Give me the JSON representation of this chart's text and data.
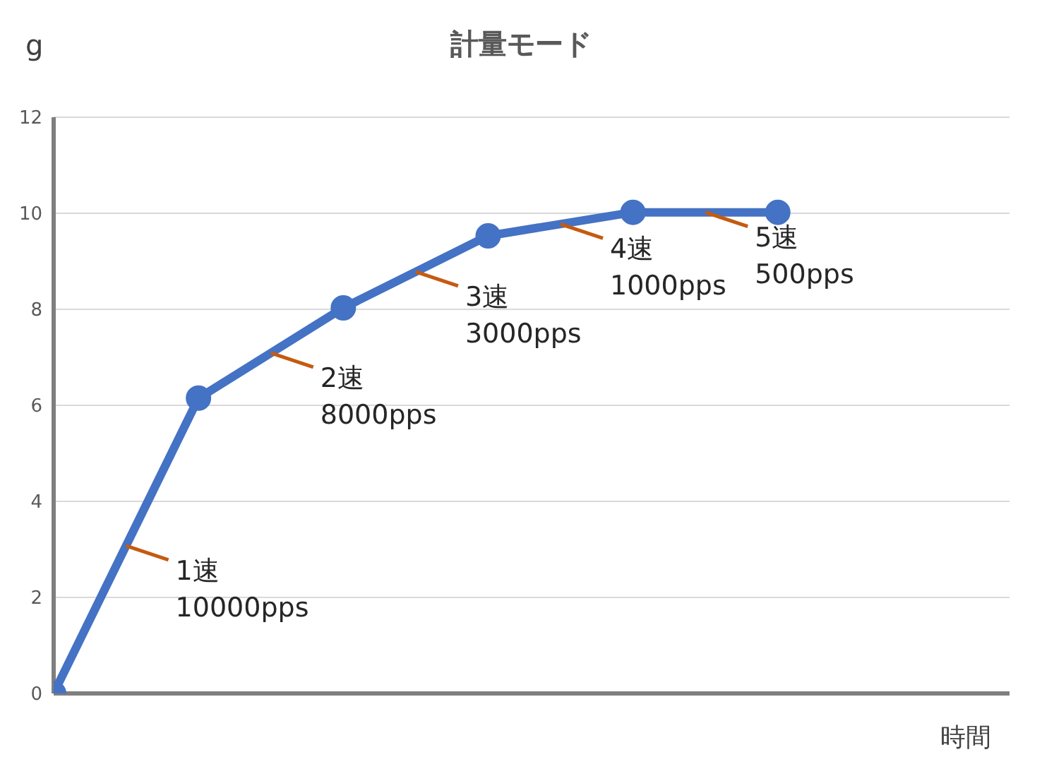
{
  "chart_data": {
    "type": "line",
    "title": "計量モード",
    "xlabel": "時間",
    "ylabel": "g",
    "categories": [
      null,
      null,
      null,
      null,
      null,
      null
    ],
    "series": [
      {
        "color": "#4472c4",
        "values": [
          0,
          6.15,
          8.03,
          9.53,
          10.02,
          10.02
        ]
      }
    ],
    "ylim": [
      0,
      12
    ],
    "yticks": [
      0,
      2,
      4,
      6,
      8,
      10,
      12
    ],
    "grid": "y",
    "marker": "circle",
    "line_style": "solid",
    "annotations": [
      "1速\n10000pps",
      "2速\n8000pps",
      "3速\n3000pps",
      "4速\n1000pps",
      "5速\n500pps"
    ]
  }
}
